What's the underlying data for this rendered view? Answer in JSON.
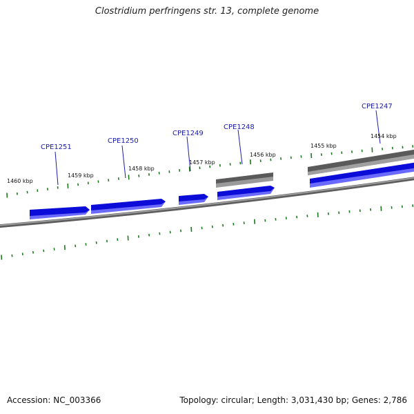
{
  "title": "Clostridium perfringens str. 13, complete genome",
  "footer": {
    "accession": "Accession: NC_003366",
    "summary": "Topology: circular; Length: 3,031,430 bp; Genes: 2,786"
  },
  "scale_labels": [
    "1460 kbp",
    "1459 kbp",
    "1458 kbp",
    "1457 kbp",
    "1456 kbp",
    "1455 kbp",
    "1454 kbp"
  ],
  "genes": [
    {
      "name": "CPE1251",
      "strand": "+",
      "color": "#1010e0"
    },
    {
      "name": "CPE1250",
      "strand": "+",
      "color": "#1010e0"
    },
    {
      "name": "CPE1249",
      "strand": "+",
      "color": "#1010e0"
    },
    {
      "name": "CPE1248",
      "strand": "+",
      "color": "#1010e0"
    },
    {
      "name": "CPE1247",
      "strand": "+",
      "color": "#1010e0"
    }
  ],
  "colors": {
    "gene_fill": "#1010e0",
    "feature_gray": "#666666",
    "backbone": "#888888",
    "tick": "#1a7a1a",
    "label_line": "#1a1aaa"
  }
}
